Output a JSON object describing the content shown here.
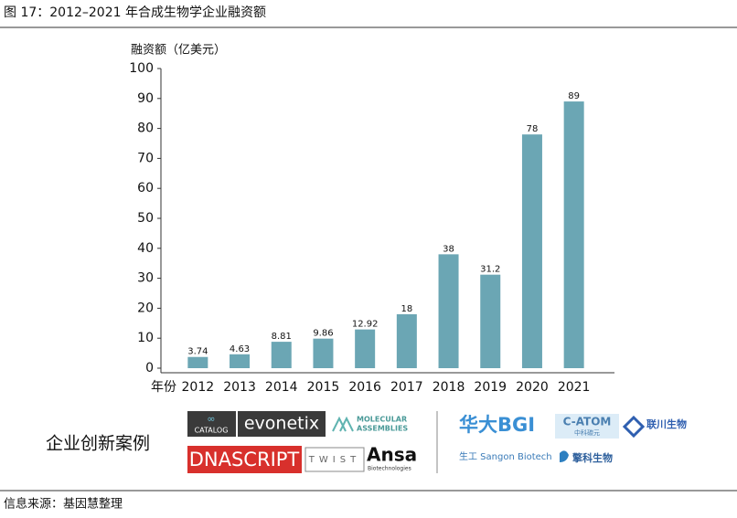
{
  "chart_data": {
    "type": "bar",
    "title": "图 17：2012–2021 年合成生物学企业融资额",
    "y_label": "融资额（亿美元）",
    "x_label": "年份",
    "categories": [
      "2012",
      "2013",
      "2014",
      "2015",
      "2016",
      "2017",
      "2018",
      "2019",
      "2020",
      "2021"
    ],
    "values": [
      3.74,
      4.63,
      8.81,
      9.86,
      12.92,
      18,
      38,
      31.2,
      78,
      89
    ],
    "color": "#6ba6b4",
    "ylim": [
      0,
      100
    ],
    "yticks": [
      0,
      10,
      20,
      30,
      40,
      50,
      60,
      70,
      80,
      90,
      100
    ],
    "grid": false
  },
  "innovation": {
    "label": "企业创新案例",
    "logos": [
      "CATALOG",
      "evonetix",
      "MOLECULAR",
      "ASSEMBLIES",
      "DNASCRIPT",
      "TWIST",
      "Ansa",
      "Biotechnologies",
      "华大BGI",
      "C-ATOM",
      "中科碳元",
      "联川生物",
      "生工 Sangon Biotech",
      "擎科生物"
    ]
  },
  "source": "信息来源：基因慧整理"
}
